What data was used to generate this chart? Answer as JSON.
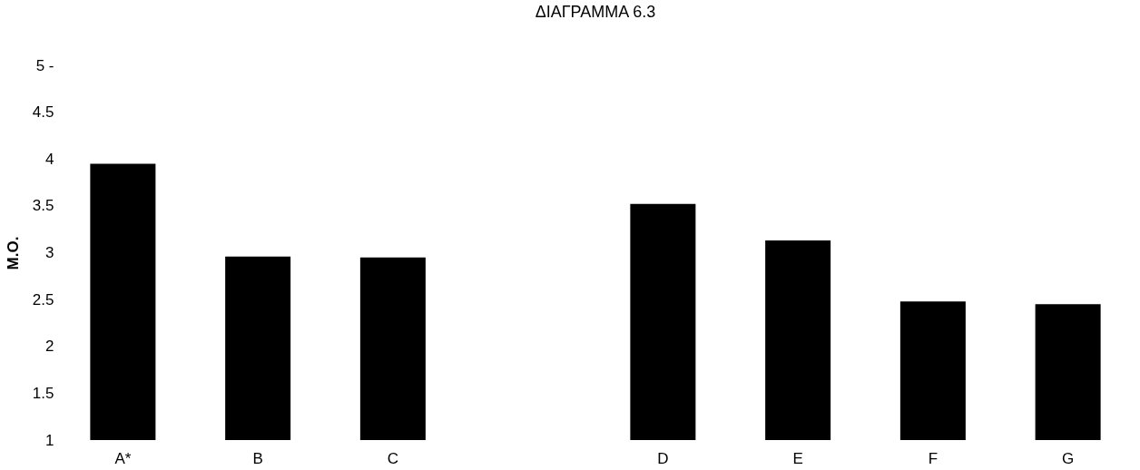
{
  "chart_data": {
    "type": "bar",
    "title": "ΔΙΑΓΡΑΜΜΑ 6.3",
    "ylabel": "M.O.",
    "categories": [
      "A*",
      "B",
      "C",
      null,
      "D",
      "E",
      "F",
      "G"
    ],
    "values": [
      3.95,
      2.96,
      2.95,
      null,
      3.52,
      3.13,
      2.48,
      2.45
    ],
    "color": "#000000",
    "ylim": [
      1,
      5
    ],
    "yticks": [
      1,
      1.5,
      2,
      2.5,
      3,
      3.5,
      4,
      4.5,
      {
        "value": 5,
        "label": "5 -"
      }
    ],
    "grid": false
  }
}
